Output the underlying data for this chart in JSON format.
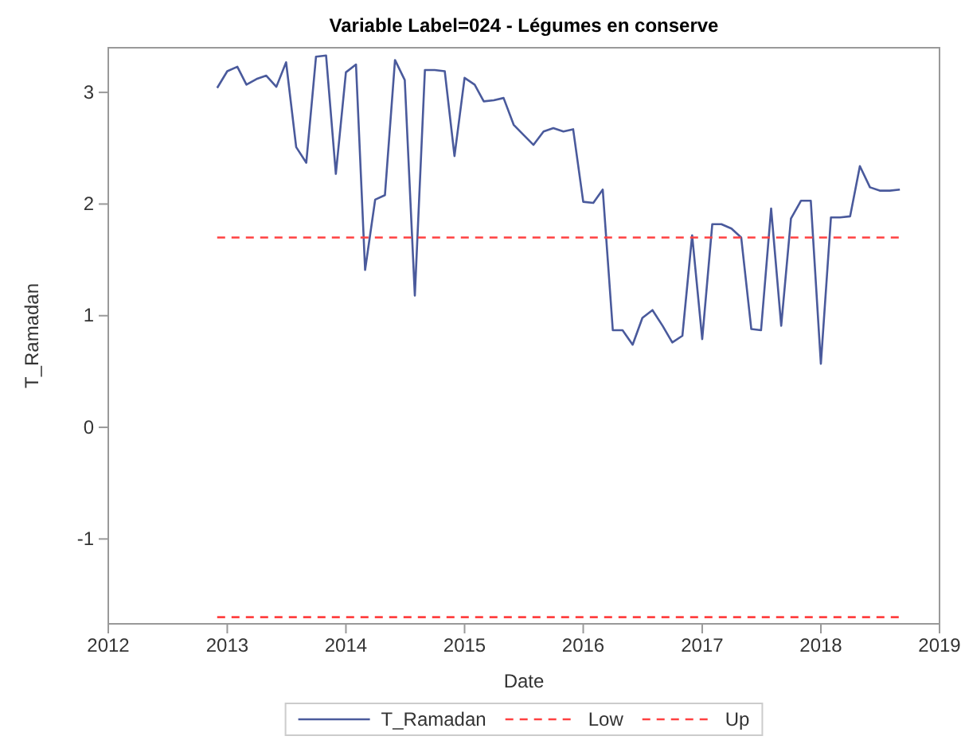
{
  "chart_data": {
    "type": "line",
    "title": "Variable Label=024 - Légumes en conserve",
    "xlabel": "Date",
    "ylabel": "T_Ramadan",
    "x": [
      "2012-12",
      "2013-01",
      "2013-02",
      "2013-03",
      "2013-04",
      "2013-05",
      "2013-06",
      "2013-07",
      "2013-08",
      "2013-09",
      "2013-10",
      "2013-11",
      "2013-12",
      "2014-01",
      "2014-02",
      "2014-03",
      "2014-04",
      "2014-05",
      "2014-06",
      "2014-07",
      "2014-08",
      "2014-09",
      "2014-10",
      "2014-11",
      "2014-12",
      "2015-01",
      "2015-02",
      "2015-03",
      "2015-04",
      "2015-05",
      "2015-06",
      "2015-07",
      "2015-08",
      "2015-09",
      "2015-10",
      "2015-11",
      "2015-12",
      "2016-01",
      "2016-02",
      "2016-03",
      "2016-04",
      "2016-05",
      "2016-06",
      "2016-07",
      "2016-08",
      "2016-09",
      "2016-10",
      "2016-11",
      "2016-12",
      "2017-01",
      "2017-02",
      "2017-03",
      "2017-04",
      "2017-05",
      "2017-06",
      "2017-07",
      "2017-08",
      "2017-09",
      "2017-10",
      "2017-11",
      "2017-12",
      "2018-01",
      "2018-02",
      "2018-03",
      "2018-04",
      "2018-05",
      "2018-06",
      "2018-07",
      "2018-08",
      "2018-09"
    ],
    "series": [
      {
        "name": "T_Ramadan",
        "color": "#4a5a9c",
        "line_style": "solid",
        "values": [
          3.04,
          3.19,
          3.23,
          3.07,
          3.12,
          3.15,
          3.05,
          3.27,
          2.51,
          2.37,
          3.32,
          3.33,
          2.27,
          3.18,
          3.25,
          1.41,
          2.04,
          2.08,
          3.29,
          3.11,
          1.18,
          3.2,
          3.2,
          3.19,
          2.43,
          3.13,
          3.07,
          2.92,
          2.93,
          2.95,
          2.71,
          2.62,
          2.53,
          2.65,
          2.68,
          2.65,
          2.67,
          2.02,
          2.01,
          2.13,
          0.87,
          0.87,
          0.74,
          0.98,
          1.05,
          0.91,
          0.76,
          0.82,
          1.72,
          0.79,
          1.82,
          1.82,
          1.78,
          1.7,
          0.88,
          0.87,
          1.96,
          0.91,
          1.87,
          2.03,
          2.03,
          0.57,
          1.88,
          1.88,
          1.89,
          2.34,
          2.15,
          2.12,
          2.12,
          2.13
        ]
      },
      {
        "name": "Low",
        "color": "#ff4040",
        "line_style": "dashed",
        "x": [
          "2012-12",
          "2018-09"
        ],
        "values": [
          -1.7,
          -1.7
        ]
      },
      {
        "name": "Up",
        "color": "#ff4040",
        "line_style": "dashed",
        "x": [
          "2012-12",
          "2018-09"
        ],
        "values": [
          1.7,
          1.7
        ]
      }
    ],
    "xlim": [
      "2012",
      "2019"
    ],
    "xticks": [
      "2012",
      "2013",
      "2014",
      "2015",
      "2016",
      "2017",
      "2018",
      "2019"
    ],
    "ylim": [
      -1.76,
      3.4
    ],
    "yticks": [
      -1,
      0,
      1,
      2,
      3
    ],
    "grid": false,
    "legend": "bottom",
    "marker": "none"
  }
}
